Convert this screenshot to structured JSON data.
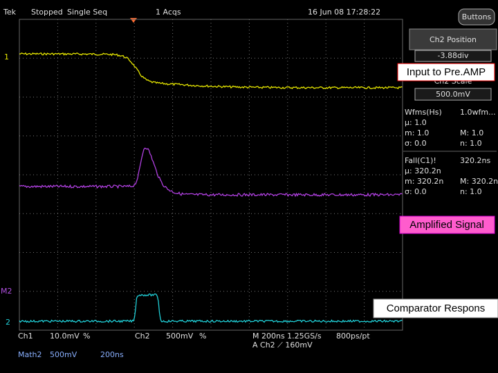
{
  "header": {
    "brand": "Tek",
    "status": "Stopped",
    "mode": "Single Seq",
    "acqs": "1 Acqs",
    "datetime": "16 Jun 08 17:28:22",
    "button": "Buttons"
  },
  "side_panel": {
    "title": "Ch2 Position",
    "position": "-3.88div",
    "scale_title": "Ch2 Scale",
    "scale": "500.0mV",
    "measurements": [
      [
        "Wfms(Hs)",
        "1.0wfm..."
      ],
      [
        "μ: 1.0",
        ""
      ],
      [
        "m: 1.0",
        "M: 1.0"
      ],
      [
        "σ: 0.0",
        "n: 1.0"
      ],
      [
        "Fall(C1)!",
        "320.2ns"
      ],
      [
        "μ: 320.2n",
        ""
      ],
      [
        "m: 320.2n",
        "M: 320.2n"
      ],
      [
        "σ: 0.0",
        "n: 1.0"
      ]
    ]
  },
  "annotations": [
    "Input to Pre.AMP",
    "Amplified Signal",
    "Comparator Respons"
  ],
  "markers": [
    "1",
    "M2",
    "2"
  ],
  "footer": {
    "ch1": "Ch1",
    "ch1_scale": "10.0mV",
    "ch1_coupling": "%",
    "ch2": "Ch2",
    "ch2_scale": "500mV",
    "ch2_coupling": "%",
    "timebase": "M 200ns 1.25GS/s",
    "resolution": "800ps/pt",
    "trigger": "A  Ch2  ⟋  160mV",
    "math": "Math2",
    "math_scale": "500mV",
    "math_time": "200ns"
  }
}
